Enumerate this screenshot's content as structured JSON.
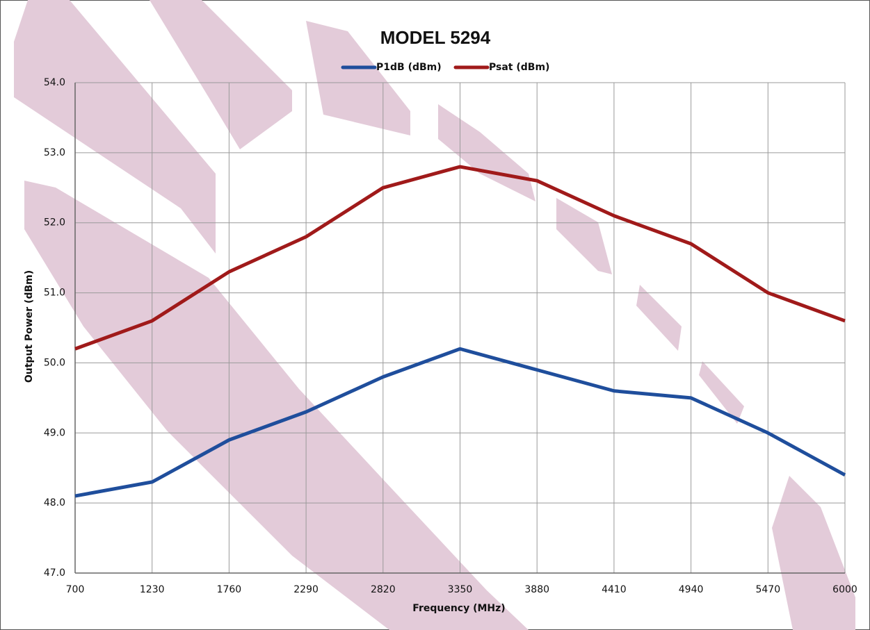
{
  "chart_data": {
    "type": "line",
    "title": "MODEL 5294",
    "x_label": "Frequency (MHz)",
    "y_label": "Output Power (dBm)",
    "x": [
      700,
      1230,
      1760,
      2290,
      2820,
      3350,
      3880,
      4410,
      4940,
      5470,
      6000
    ],
    "xlim": [
      700,
      6000
    ],
    "xticks": [
      700,
      1230,
      1760,
      2290,
      2820,
      3350,
      3880,
      4410,
      4940,
      5470,
      6000
    ],
    "ylim": [
      47,
      54
    ],
    "yticks": [
      {
        "value": 47,
        "label": "47.0"
      },
      {
        "value": 48,
        "label": "48.0"
      },
      {
        "value": 49,
        "label": "49.0"
      },
      {
        "value": 50,
        "label": "50.0"
      },
      {
        "value": 51,
        "label": "51.0"
      },
      {
        "value": 52,
        "label": "52.0"
      },
      {
        "value": 53,
        "label": "53.0"
      },
      {
        "value": 54,
        "label": "54.0"
      }
    ],
    "grid": true,
    "legend": "top",
    "series": [
      {
        "name": "P1dB (dBm)",
        "color": "#1f4e9c",
        "values": [
          48.1,
          48.3,
          48.9,
          49.3,
          49.8,
          50.2,
          49.9,
          49.6,
          49.5,
          49.0,
          48.4
        ]
      },
      {
        "name": "Psat (dBm)",
        "color": "#a01a1a",
        "values": [
          50.2,
          50.6,
          51.3,
          51.8,
          52.5,
          52.8,
          52.6,
          52.1,
          51.7,
          51.0,
          50.6
        ]
      }
    ]
  }
}
